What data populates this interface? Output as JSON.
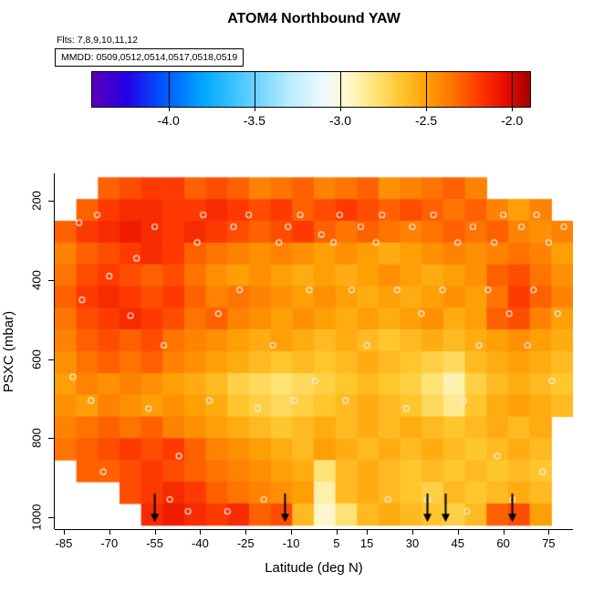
{
  "title": "ATOM4 Northbound YAW",
  "annotations": {
    "flights": "Flts: 7,8,9,10,11,12",
    "mmdd": "MMDD: 0509,0512,0514,0517,0518,0519"
  },
  "colorbar": {
    "vmin": -4.45,
    "vmax": -1.9,
    "ticks": [
      -4.0,
      -3.5,
      -3.0,
      -2.5,
      -2.0
    ],
    "tick_labels": [
      "-4.0",
      "-3.5",
      "-3.0",
      "-2.5",
      "-2.0"
    ],
    "stops": [
      [
        -4.45,
        "#5B00B8"
      ],
      [
        -4.25,
        "#2500E6"
      ],
      [
        -4.05,
        "#0050FF"
      ],
      [
        -3.8,
        "#00A8FF"
      ],
      [
        -3.55,
        "#56CCFF"
      ],
      [
        -3.3,
        "#BAEBFF"
      ],
      [
        -3.1,
        "#EFFAFF"
      ],
      [
        -2.95,
        "#FFF7C8"
      ],
      [
        -2.8,
        "#FFE375"
      ],
      [
        -2.65,
        "#FFC62E"
      ],
      [
        -2.5,
        "#FF9F06"
      ],
      [
        -2.35,
        "#FF7300"
      ],
      [
        -2.2,
        "#FF3A00"
      ],
      [
        -2.05,
        "#E80D00"
      ],
      [
        -1.9,
        "#A40000"
      ]
    ]
  },
  "axes": {
    "x": {
      "label": "Latitude (deg N)",
      "min": -88,
      "max": 83,
      "ticks": [
        -85,
        -70,
        -55,
        -40,
        -25,
        -10,
        5,
        15,
        30,
        45,
        60,
        75
      ]
    },
    "y": {
      "label": "PSXC (mbar)",
      "min": 130,
      "max": 1030,
      "reversed": true,
      "ticks": [
        200,
        400,
        600,
        800,
        1000
      ]
    }
  },
  "chart_data": {
    "type": "heatmap",
    "title": "ATOM4 Northbound YAW",
    "xlabel": "Latitude (deg N)",
    "ylabel": "PSXC (mbar)",
    "value_range": [
      -4.45,
      -1.9
    ],
    "x_centers": [
      -84.44,
      -77.31,
      -70.19,
      -63.06,
      -55.94,
      -48.81,
      -41.69,
      -34.56,
      -27.44,
      -20.31,
      -13.19,
      -6.06,
      1.06,
      8.19,
      15.31,
      22.44,
      29.56,
      36.69,
      43.81,
      50.94,
      58.06,
      65.19,
      72.31,
      79.44
    ],
    "y_centers": [
      167.5,
      222.5,
      277.5,
      332.5,
      387.5,
      442.5,
      497.5,
      552.5,
      607.5,
      662.5,
      717.5,
      772.5,
      827.5,
      882.5,
      937.5,
      992.5
    ],
    "values": [
      [
        null,
        null,
        -2.3,
        -2.25,
        -2.2,
        -2.2,
        -2.3,
        -2.25,
        -2.3,
        -2.4,
        -2.35,
        -2.3,
        -2.4,
        -2.35,
        -2.3,
        -2.45,
        -2.4,
        -2.35,
        -2.3,
        -2.4,
        null,
        null,
        null,
        null
      ],
      [
        null,
        -2.3,
        -2.2,
        -2.15,
        -2.15,
        -2.2,
        -2.2,
        -2.15,
        -2.2,
        -2.25,
        -2.2,
        -2.3,
        -2.25,
        -2.2,
        -2.25,
        -2.3,
        -2.25,
        -2.3,
        -2.35,
        -2.3,
        -2.4,
        -2.5,
        -2.4,
        null
      ],
      [
        -2.3,
        -2.2,
        -2.15,
        -2.1,
        -2.15,
        -2.2,
        -2.15,
        -2.2,
        -2.25,
        -2.3,
        -2.25,
        -2.2,
        -2.3,
        -2.35,
        -2.3,
        -2.35,
        -2.4,
        -2.35,
        -2.3,
        -2.35,
        -2.3,
        -2.4,
        -2.45,
        -2.4
      ],
      [
        -2.4,
        -2.3,
        -2.25,
        -2.2,
        -2.15,
        -2.2,
        -2.3,
        -2.35,
        -2.4,
        -2.45,
        -2.4,
        -2.45,
        -2.5,
        -2.45,
        -2.5,
        -2.55,
        -2.5,
        -2.45,
        -2.4,
        -2.45,
        -2.4,
        -2.35,
        -2.4,
        -2.5
      ],
      [
        -2.35,
        -2.25,
        -2.2,
        -2.25,
        -2.3,
        -2.25,
        -2.35,
        -2.45,
        -2.5,
        -2.45,
        -2.5,
        -2.55,
        -2.5,
        -2.55,
        -2.5,
        -2.45,
        -2.5,
        -2.55,
        -2.5,
        -2.45,
        -2.3,
        -2.25,
        -2.35,
        -2.45
      ],
      [
        -2.3,
        -2.2,
        -2.15,
        -2.2,
        -2.25,
        -2.2,
        -2.3,
        -2.4,
        -2.35,
        -2.4,
        -2.45,
        -2.5,
        -2.45,
        -2.5,
        -2.55,
        -2.5,
        -2.55,
        -2.5,
        -2.45,
        -2.5,
        -2.35,
        -2.2,
        -2.3,
        -2.4
      ],
      [
        -2.35,
        -2.25,
        -2.2,
        -2.15,
        -2.2,
        -2.25,
        -2.35,
        -2.3,
        -2.4,
        -2.45,
        -2.5,
        -2.45,
        -2.5,
        -2.55,
        -2.5,
        -2.55,
        -2.5,
        -2.45,
        -2.55,
        -2.5,
        -2.3,
        -2.25,
        -2.4,
        -2.5
      ],
      [
        -2.4,
        -2.3,
        -2.25,
        -2.3,
        -2.25,
        -2.35,
        -2.4,
        -2.45,
        -2.5,
        -2.55,
        -2.5,
        -2.55,
        -2.6,
        -2.55,
        -2.6,
        -2.65,
        -2.6,
        -2.55,
        -2.6,
        -2.55,
        -2.5,
        -2.45,
        -2.5,
        -2.55
      ],
      [
        -2.45,
        -2.35,
        -2.3,
        -2.35,
        -2.3,
        -2.4,
        -2.45,
        -2.5,
        -2.55,
        -2.6,
        -2.65,
        -2.6,
        -2.65,
        -2.6,
        -2.55,
        -2.6,
        -2.65,
        -2.7,
        -2.75,
        -2.6,
        -2.55,
        -2.5,
        -2.55,
        -2.6
      ],
      [
        -2.5,
        -2.4,
        -2.45,
        -2.4,
        -2.45,
        -2.5,
        -2.55,
        -2.6,
        -2.7,
        -2.75,
        -2.8,
        -2.75,
        -2.7,
        -2.65,
        -2.6,
        -2.65,
        -2.7,
        -2.8,
        -2.9,
        -2.7,
        -2.6,
        -2.55,
        -2.6,
        -2.65
      ],
      [
        -2.45,
        -2.5,
        -2.4,
        -2.45,
        -2.5,
        -2.45,
        -2.5,
        -2.55,
        -2.65,
        -2.7,
        -2.75,
        -2.7,
        -2.65,
        -2.6,
        -2.55,
        -2.6,
        -2.65,
        -2.75,
        -2.85,
        -2.65,
        -2.55,
        -2.5,
        -2.55,
        -2.6
      ],
      [
        -2.4,
        -2.35,
        -2.3,
        -2.35,
        -2.3,
        -2.4,
        -2.45,
        -2.5,
        -2.55,
        -2.6,
        -2.65,
        -2.6,
        -2.55,
        -2.6,
        -2.55,
        -2.6,
        -2.55,
        -2.6,
        -2.65,
        -2.6,
        -2.55,
        -2.6,
        -2.55,
        null
      ],
      [
        -2.35,
        -2.3,
        -2.25,
        -2.2,
        -2.25,
        -2.2,
        -2.3,
        -2.4,
        -2.45,
        -2.5,
        -2.55,
        -2.6,
        -2.5,
        -2.55,
        -2.6,
        -2.55,
        -2.6,
        -2.55,
        -2.6,
        -2.65,
        -2.6,
        -2.55,
        -2.6,
        null
      ],
      [
        null,
        -2.3,
        -2.3,
        -2.25,
        -2.2,
        -2.25,
        -2.3,
        -2.35,
        -2.4,
        -2.45,
        -2.5,
        -2.55,
        -2.8,
        -2.6,
        -2.55,
        -2.6,
        -2.65,
        -2.6,
        -2.65,
        -2.6,
        -2.65,
        -2.6,
        -2.65,
        null
      ],
      [
        null,
        null,
        null,
        -2.25,
        -2.2,
        -2.15,
        -2.2,
        -2.3,
        -2.35,
        -2.4,
        -2.45,
        -2.5,
        -2.9,
        -2.6,
        -2.55,
        -2.6,
        -2.65,
        -2.7,
        -2.6,
        -2.65,
        -2.6,
        -2.55,
        -2.6,
        null
      ],
      [
        null,
        null,
        null,
        null,
        -2.15,
        -2.1,
        -2.15,
        -2.2,
        -2.15,
        -2.3,
        -2.25,
        -2.6,
        -2.95,
        -2.8,
        -2.6,
        -2.55,
        -2.6,
        -2.65,
        -2.7,
        -2.6,
        -2.3,
        -2.25,
        -2.5,
        null
      ]
    ],
    "circles_lat_p": [
      [
        -80,
        255
      ],
      [
        -74,
        235
      ],
      [
        -79,
        450
      ],
      [
        -70,
        390
      ],
      [
        -82,
        645
      ],
      [
        -76,
        705
      ],
      [
        -72,
        885
      ],
      [
        -61,
        345
      ],
      [
        -63,
        490
      ],
      [
        -55,
        265
      ],
      [
        -52,
        565
      ],
      [
        -57,
        725
      ],
      [
        -50,
        955
      ],
      [
        -47,
        845
      ],
      [
        -44,
        985
      ],
      [
        -41,
        305
      ],
      [
        -39,
        235
      ],
      [
        -37,
        705
      ],
      [
        -34,
        485
      ],
      [
        -31,
        985
      ],
      [
        -29,
        265
      ],
      [
        -27,
        425
      ],
      [
        -24,
        235
      ],
      [
        -21,
        725
      ],
      [
        -19,
        955
      ],
      [
        -16,
        565
      ],
      [
        -14,
        305
      ],
      [
        -11,
        265
      ],
      [
        -9,
        705
      ],
      [
        -7,
        235
      ],
      [
        -4,
        425
      ],
      [
        -2,
        655
      ],
      [
        0,
        285
      ],
      [
        2,
        985
      ],
      [
        4,
        305
      ],
      [
        6,
        235
      ],
      [
        8,
        705
      ],
      [
        10,
        425
      ],
      [
        13,
        265
      ],
      [
        15,
        565
      ],
      [
        18,
        305
      ],
      [
        20,
        235
      ],
      [
        22,
        955
      ],
      [
        25,
        425
      ],
      [
        28,
        725
      ],
      [
        30,
        265
      ],
      [
        33,
        485
      ],
      [
        35,
        955
      ],
      [
        37,
        235
      ],
      [
        40,
        425
      ],
      [
        42,
        655
      ],
      [
        45,
        305
      ],
      [
        47,
        705
      ],
      [
        48,
        985
      ],
      [
        50,
        265
      ],
      [
        52,
        565
      ],
      [
        55,
        425
      ],
      [
        57,
        305
      ],
      [
        58,
        845
      ],
      [
        60,
        235
      ],
      [
        62,
        485
      ],
      [
        63,
        955
      ],
      [
        66,
        265
      ],
      [
        68,
        565
      ],
      [
        70,
        425
      ],
      [
        71,
        235
      ],
      [
        73,
        885
      ],
      [
        75,
        305
      ],
      [
        76,
        655
      ],
      [
        78,
        485
      ],
      [
        80,
        265
      ]
    ],
    "arrows_lat": [
      -55,
      -12,
      35,
      41,
      63
    ]
  }
}
